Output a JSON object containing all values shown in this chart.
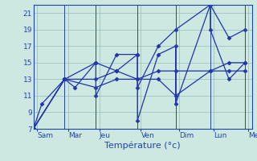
{
  "background_color": "#cce8e0",
  "grid_color": "#99bbbb",
  "line_color": "#2233aa",
  "marker_color": "#2233aa",
  "xlabel": "Température (°c)",
  "ylim": [
    7,
    22
  ],
  "yticks": [
    7,
    9,
    11,
    13,
    15,
    17,
    19,
    21
  ],
  "xlim": [
    0,
    315
  ],
  "day_positions": [
    5,
    50,
    95,
    155,
    210,
    260,
    310
  ],
  "day_labels": [
    "Sam",
    "Mar",
    "Jeu",
    "Ven",
    "Dim",
    "Lun",
    "Mer"
  ],
  "vline_positions": [
    0,
    45,
    90,
    150,
    205,
    255,
    305
  ],
  "line1_x": [
    0,
    12,
    45,
    60,
    90,
    90,
    120,
    150,
    150,
    180,
    205,
    205,
    255,
    255,
    282,
    305
  ],
  "line1_y": [
    7,
    10,
    13,
    12,
    15,
    11,
    16,
    16,
    8,
    16,
    17,
    10,
    22,
    19,
    13,
    15
  ],
  "line2_x": [
    0,
    45,
    90,
    120,
    150,
    150,
    180,
    205,
    255,
    282,
    305
  ],
  "line2_y": [
    7,
    13,
    15,
    14,
    16,
    12,
    17,
    19,
    22,
    18,
    19
  ],
  "line3_x": [
    0,
    45,
    90,
    120,
    150,
    180,
    205,
    255,
    282,
    305
  ],
  "line3_y": [
    7,
    13,
    13,
    14,
    13,
    14,
    14,
    14,
    15,
    15
  ],
  "line4_x": [
    0,
    45,
    90,
    120,
    150,
    180,
    205,
    255,
    282,
    305
  ],
  "line4_y": [
    7,
    13,
    12,
    13,
    13,
    13,
    11,
    14,
    14,
    14
  ]
}
